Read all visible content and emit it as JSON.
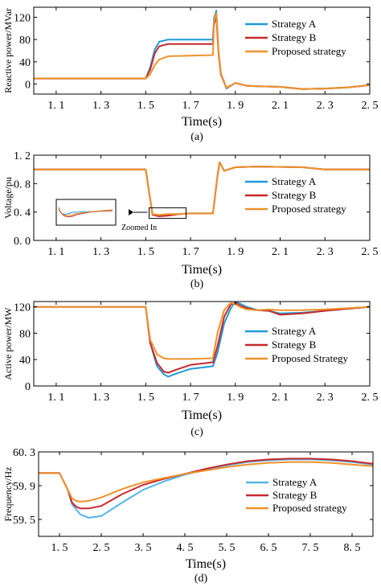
{
  "chart_data": [
    {
      "type": "line",
      "caption": "(a)",
      "xlabel": "Time(s)",
      "ylabel": "Reactive power/MVar",
      "xlim": [
        1.0,
        2.5
      ],
      "ylim": [
        -18,
        138
      ],
      "x_ticks": [
        "1. 1",
        "1. 3",
        "1. 5",
        "1. 7",
        "1. 9",
        "2. 1",
        "2. 3",
        "2. 5"
      ],
      "x_tick_values": [
        1.1,
        1.3,
        1.5,
        1.7,
        1.9,
        2.1,
        2.3,
        2.5
      ],
      "y_ticks": [
        "120",
        "80",
        "40",
        "0"
      ],
      "y_tick_values": [
        120,
        80,
        40,
        0
      ],
      "legend_position": "top-right",
      "series": [
        {
          "name": "Strategy A",
          "color": "#1f9ad6",
          "x": [
            1.0,
            1.5,
            1.52,
            1.54,
            1.56,
            1.6,
            1.7,
            1.8,
            1.805,
            1.815,
            1.825,
            1.835,
            1.86,
            1.9,
            1.95,
            2.0,
            2.1,
            2.2,
            2.3,
            2.4,
            2.5
          ],
          "y": [
            10,
            10,
            30,
            62,
            76,
            80,
            80,
            80,
            118,
            132,
            60,
            20,
            -8,
            2,
            -3,
            -4,
            -5,
            -9,
            -8,
            -6,
            -2
          ]
        },
        {
          "name": "Strategy B",
          "color": "#c8282d",
          "x": [
            1.0,
            1.5,
            1.52,
            1.54,
            1.56,
            1.6,
            1.7,
            1.8,
            1.805,
            1.815,
            1.825,
            1.835,
            1.86,
            1.9,
            1.95,
            2.0,
            2.1,
            2.2,
            2.3,
            2.4,
            2.5
          ],
          "y": [
            10,
            10,
            26,
            55,
            68,
            72,
            72,
            72,
            108,
            122,
            55,
            18,
            -7,
            2,
            -3,
            -4,
            -5,
            -9,
            -8,
            -6,
            -2
          ]
        },
        {
          "name": "Proposed strategy",
          "color": "#f0922a",
          "x": [
            1.0,
            1.5,
            1.52,
            1.54,
            1.56,
            1.6,
            1.7,
            1.8,
            1.805,
            1.815,
            1.825,
            1.835,
            1.86,
            1.9,
            1.95,
            2.0,
            2.1,
            2.2,
            2.3,
            2.4,
            2.5
          ],
          "y": [
            10,
            10,
            18,
            34,
            44,
            50,
            51,
            52,
            112,
            128,
            60,
            20,
            -7,
            2,
            -3,
            -4,
            -5,
            -9,
            -8,
            -6,
            -2
          ]
        }
      ]
    },
    {
      "type": "line",
      "caption": "(b)",
      "xlabel": "Time(s)",
      "ylabel": "Voltage/pu",
      "xlim": [
        1.0,
        2.5
      ],
      "ylim": [
        0,
        1.2
      ],
      "x_ticks": [
        "1. 1",
        "1. 3",
        "1. 5",
        "1. 7",
        "1. 9",
        "2. 1",
        "2. 3",
        "2. 5"
      ],
      "x_tick_values": [
        1.1,
        1.3,
        1.5,
        1.7,
        1.9,
        2.1,
        2.3,
        2.5
      ],
      "y_ticks": [
        "1. 2",
        "0. 8",
        "0. 4",
        "0. 0"
      ],
      "y_tick_values": [
        1.2,
        0.8,
        0.4,
        0.0
      ],
      "legend_position": "right",
      "annotation": "Zoomed In",
      "series": [
        {
          "name": "Strategy A",
          "color": "#1f9ad6",
          "x": [
            1.0,
            1.5,
            1.53,
            1.56,
            1.6,
            1.65,
            1.7,
            1.8,
            1.82,
            1.83,
            1.85,
            1.9,
            2.0,
            2.2,
            2.3,
            2.5
          ],
          "y": [
            1.0,
            1.0,
            0.37,
            0.35,
            0.36,
            0.37,
            0.38,
            0.38,
            0.9,
            1.1,
            0.98,
            1.03,
            1.04,
            1.03,
            1.0,
            1.0
          ]
        },
        {
          "name": "Strategy B",
          "color": "#c8282d",
          "x": [
            1.0,
            1.5,
            1.53,
            1.56,
            1.6,
            1.65,
            1.7,
            1.8,
            1.82,
            1.83,
            1.85,
            1.9,
            2.0,
            2.2,
            2.3,
            2.5
          ],
          "y": [
            1.0,
            1.0,
            0.36,
            0.34,
            0.35,
            0.37,
            0.38,
            0.38,
            0.9,
            1.1,
            0.98,
            1.03,
            1.04,
            1.03,
            1.0,
            1.0
          ]
        },
        {
          "name": "Proposed strategy",
          "color": "#f0922a",
          "x": [
            1.0,
            1.5,
            1.53,
            1.56,
            1.6,
            1.65,
            1.7,
            1.8,
            1.82,
            1.83,
            1.85,
            1.9,
            2.0,
            2.2,
            2.3,
            2.5
          ],
          "y": [
            1.0,
            1.0,
            0.37,
            0.36,
            0.37,
            0.37,
            0.38,
            0.38,
            0.9,
            1.1,
            0.98,
            1.03,
            1.04,
            1.03,
            1.0,
            1.0
          ]
        }
      ]
    },
    {
      "type": "line",
      "caption": "(c)",
      "xlabel": "Time(s)",
      "ylabel": "Active power/MW",
      "xlim": [
        1.0,
        2.5
      ],
      "ylim": [
        0,
        128
      ],
      "x_ticks": [
        "1. 1",
        "1. 3",
        "1. 5",
        "1. 7",
        "1. 9",
        "2. 1",
        "2. 3",
        "2. 5"
      ],
      "x_tick_values": [
        1.1,
        1.3,
        1.5,
        1.7,
        1.9,
        2.1,
        2.3,
        2.5
      ],
      "y_ticks": [
        "120",
        "80",
        "40",
        "0"
      ],
      "y_tick_values": [
        120,
        80,
        40,
        0
      ],
      "legend_position": "right",
      "series": [
        {
          "name": "Strategy A",
          "color": "#1f9ad6",
          "x": [
            1.0,
            1.5,
            1.52,
            1.55,
            1.58,
            1.6,
            1.63,
            1.7,
            1.8,
            1.82,
            1.85,
            1.88,
            1.9,
            1.92,
            1.95,
            2.0,
            2.05,
            2.1,
            2.2,
            2.3,
            2.4,
            2.5
          ],
          "y": [
            120,
            120,
            65,
            30,
            18,
            14,
            18,
            26,
            30,
            50,
            95,
            118,
            128,
            125,
            120,
            115,
            114,
            110,
            111,
            114,
            117,
            120
          ]
        },
        {
          "name": "Strategy B",
          "color": "#c8282d",
          "x": [
            1.0,
            1.5,
            1.52,
            1.55,
            1.58,
            1.6,
            1.63,
            1.7,
            1.8,
            1.82,
            1.85,
            1.88,
            1.9,
            1.92,
            1.95,
            2.0,
            2.05,
            2.1,
            2.2,
            2.3,
            2.4,
            2.5
          ],
          "y": [
            120,
            120,
            65,
            35,
            22,
            20,
            24,
            32,
            36,
            60,
            105,
            124,
            126,
            122,
            118,
            115,
            114,
            108,
            110,
            114,
            117,
            120
          ]
        },
        {
          "name": "Proposed Strategy",
          "color": "#f0922a",
          "x": [
            1.0,
            1.5,
            1.52,
            1.55,
            1.58,
            1.6,
            1.63,
            1.7,
            1.8,
            1.82,
            1.85,
            1.88,
            1.9,
            1.92,
            1.95,
            2.0,
            2.05,
            2.1,
            2.2,
            2.3,
            2.4,
            2.5
          ],
          "y": [
            120,
            120,
            70,
            48,
            42,
            41,
            41,
            41,
            42,
            80,
            115,
            126,
            124,
            120,
            116,
            115,
            116,
            115,
            115,
            116,
            118,
            120
          ]
        }
      ]
    },
    {
      "type": "line",
      "caption": "(d)",
      "xlabel": "Time(s)",
      "ylabel": "Frequency/Hz",
      "xlim": [
        1.0,
        9.0
      ],
      "ylim": [
        59.3,
        60.3
      ],
      "x_ticks": [
        "1. 5",
        "2. 5",
        "3. 5",
        "4. 5",
        "5. 5",
        "6. 5",
        "7. 5",
        "8. 5"
      ],
      "x_tick_values": [
        1.5,
        2.5,
        3.5,
        4.5,
        5.5,
        6.5,
        7.5,
        8.5
      ],
      "y_ticks": [
        "60. 3",
        "59. 9",
        "59. 5"
      ],
      "y_tick_values": [
        60.3,
        59.9,
        59.5
      ],
      "legend_position": "right",
      "series": [
        {
          "name": "Strategy A",
          "color": "#56b4e9",
          "x": [
            1.0,
            1.5,
            1.6,
            1.7,
            1.8,
            1.9,
            2.0,
            2.2,
            2.5,
            3.0,
            3.5,
            4.0,
            4.5,
            5.0,
            5.5,
            6.0,
            6.5,
            7.0,
            7.5,
            8.0,
            8.5,
            9.0
          ],
          "y": [
            60.05,
            60.05,
            59.95,
            59.85,
            59.68,
            59.62,
            59.56,
            59.52,
            59.54,
            59.7,
            59.85,
            59.95,
            60.03,
            60.09,
            60.14,
            60.18,
            60.2,
            60.21,
            60.21,
            60.2,
            60.18,
            60.15
          ]
        },
        {
          "name": "Strategy B",
          "color": "#c8282d",
          "x": [
            1.0,
            1.5,
            1.6,
            1.7,
            1.8,
            1.9,
            2.0,
            2.2,
            2.5,
            3.0,
            3.5,
            4.0,
            4.5,
            5.0,
            5.5,
            6.0,
            6.5,
            7.0,
            7.5,
            8.0,
            8.5,
            9.0
          ],
          "y": [
            60.05,
            60.05,
            59.95,
            59.85,
            59.7,
            59.65,
            59.63,
            59.63,
            59.66,
            59.8,
            59.91,
            59.98,
            60.04,
            60.1,
            60.15,
            60.19,
            60.21,
            60.22,
            60.22,
            60.21,
            60.19,
            60.16
          ]
        },
        {
          "name": "Proposed strategy",
          "color": "#f0922a",
          "x": [
            1.0,
            1.5,
            1.6,
            1.7,
            1.8,
            1.9,
            2.0,
            2.2,
            2.5,
            3.0,
            3.5,
            4.0,
            4.5,
            5.0,
            5.5,
            6.0,
            6.5,
            7.0,
            7.5,
            8.0,
            8.5,
            9.0
          ],
          "y": [
            60.05,
            60.05,
            59.95,
            59.85,
            59.75,
            59.72,
            59.71,
            59.72,
            59.76,
            59.86,
            59.94,
            59.99,
            60.04,
            60.08,
            60.12,
            60.15,
            60.17,
            60.18,
            60.18,
            60.17,
            60.15,
            60.13
          ]
        }
      ]
    }
  ]
}
